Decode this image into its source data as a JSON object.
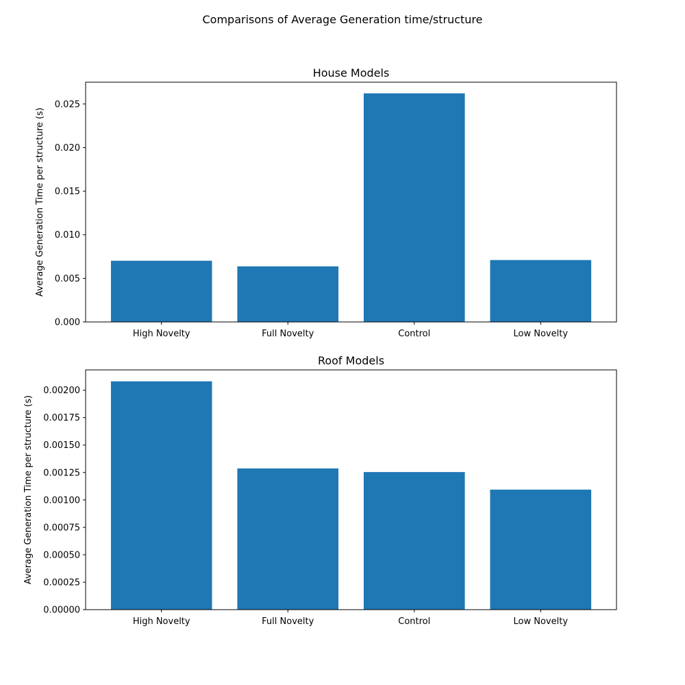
{
  "figure": {
    "suptitle": "Comparisons of Average Generation time/structure"
  },
  "chart_data": [
    {
      "type": "bar",
      "title": "House Models",
      "xlabel": "",
      "ylabel": "Average Generation Time per structure (s)",
      "categories": [
        "High Novelty",
        "Full Novelty",
        "Control",
        "Low Novelty"
      ],
      "values": [
        0.00702,
        0.00638,
        0.02622,
        0.0071
      ],
      "ylim": [
        0,
        0.0275
      ],
      "yticks": [
        0.0,
        0.005,
        0.01,
        0.015,
        0.02,
        0.025
      ],
      "ytick_labels": [
        "0.000",
        "0.005",
        "0.010",
        "0.015",
        "0.020",
        "0.025"
      ],
      "bar_color": "#1f77b4",
      "grid": false
    },
    {
      "type": "bar",
      "title": "Roof Models",
      "xlabel": "",
      "ylabel": "Average Generation Time per structure (s)",
      "categories": [
        "High Novelty",
        "Full Novelty",
        "Control",
        "Low Novelty"
      ],
      "values": [
        0.002081,
        0.001287,
        0.001254,
        0.001094
      ],
      "ylim": [
        0,
        0.002185
      ],
      "yticks": [
        0.0,
        0.00025,
        0.0005,
        0.00075,
        0.001,
        0.00125,
        0.0015,
        0.00175,
        0.002
      ],
      "ytick_labels": [
        "0.00000",
        "0.00025",
        "0.00050",
        "0.00075",
        "0.00100",
        "0.00125",
        "0.00150",
        "0.00175",
        "0.00200"
      ],
      "bar_color": "#1f77b4",
      "grid": false
    }
  ]
}
